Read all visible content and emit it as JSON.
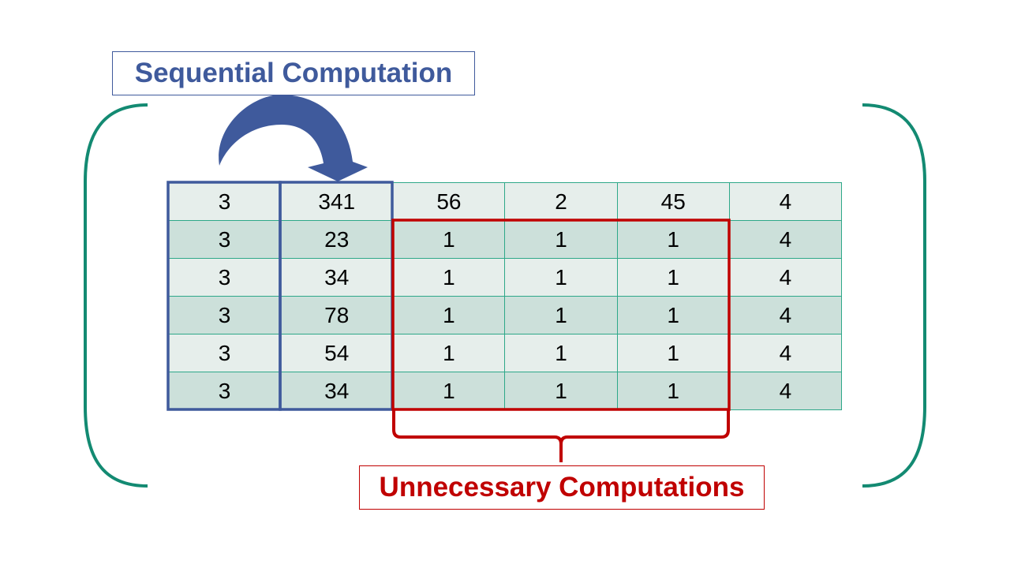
{
  "labels": {
    "sequential": "Sequential Computation",
    "unnecessary": "Unnecessary Computations"
  },
  "table": {
    "rows": [
      [
        "3",
        "341",
        "56",
        "2",
        "45",
        "4"
      ],
      [
        "3",
        "23",
        "1",
        "1",
        "1",
        "4"
      ],
      [
        "3",
        "34",
        "1",
        "1",
        "1",
        "4"
      ],
      [
        "3",
        "78",
        "1",
        "1",
        "1",
        "4"
      ],
      [
        "3",
        "54",
        "1",
        "1",
        "1",
        "4"
      ],
      [
        "3",
        "34",
        "1",
        "1",
        "1",
        "4"
      ]
    ]
  },
  "colors": {
    "blue": "#3f5a9c",
    "red": "#c00000",
    "teal_border": "#2ea889",
    "bracket": "#138a72",
    "row_light": "#e6eeeb",
    "row_dark": "#cce0da"
  }
}
